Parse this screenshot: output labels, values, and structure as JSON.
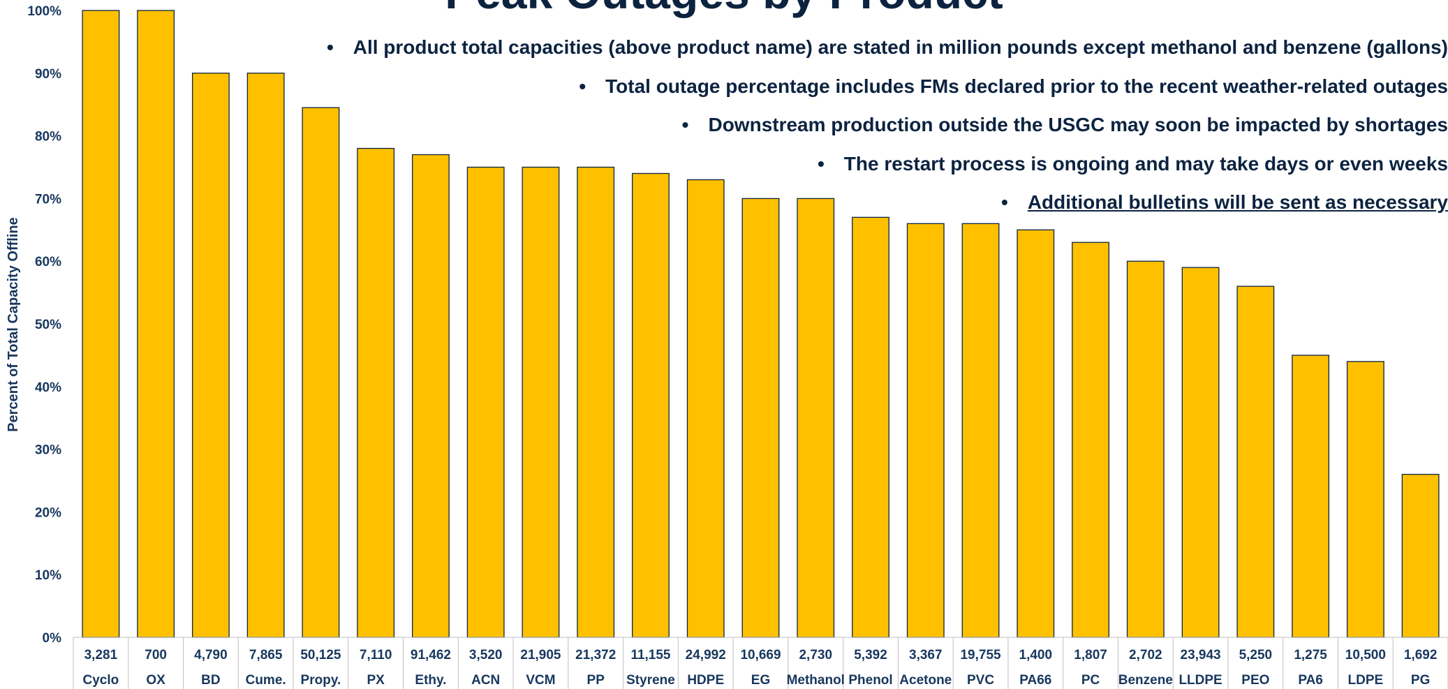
{
  "chart_data": {
    "type": "bar",
    "title": "Peak Outages by Product",
    "ylabel": "Percent of Total Capacity Offline",
    "xlabel": "",
    "ylim": [
      0,
      100
    ],
    "yticks": [
      "0%",
      "10%",
      "20%",
      "30%",
      "40%",
      "50%",
      "60%",
      "70%",
      "80%",
      "90%",
      "100%"
    ],
    "categories": [
      "Cyclo",
      "OX",
      "BD",
      "Cume.",
      "Propy.",
      "PX",
      "Ethy.",
      "ACN",
      "VCM",
      "PP",
      "Styrene",
      "HDPE",
      "EG",
      "Methanol",
      "Phenol",
      "Acetone",
      "PVC",
      "PA66",
      "PC",
      "Benzene",
      "LLDPE",
      "PEO",
      "PA6",
      "LDPE",
      "PG"
    ],
    "capacities": [
      "3,281",
      "700",
      "4,790",
      "7,865",
      "50,125",
      "7,110",
      "91,462",
      "3,520",
      "21,905",
      "21,372",
      "11,155",
      "24,992",
      "10,669",
      "2,730",
      "5,392",
      "3,367",
      "19,755",
      "1,400",
      "1,807",
      "2,702",
      "23,943",
      "5,250",
      "1,275",
      "10,500",
      "1,692"
    ],
    "values": [
      100,
      100,
      90,
      90,
      84.5,
      78,
      77,
      75,
      75,
      75,
      74,
      73,
      70,
      70,
      67,
      66,
      66,
      65,
      63,
      60,
      59,
      56,
      45,
      44,
      26
    ],
    "bar_color": "#ffc000",
    "bar_edge_color": "#0c2340",
    "text_color": "#17375e",
    "grid": false,
    "annotations": [
      "All product total capacities (above product name) are stated in million pounds except methanol and benzene (gallons)",
      "Total outage percentage includes FMs declared prior to the recent weather-related outages",
      "Downstream production outside the USGC may soon be impacted by shortages",
      "The restart process is ongoing and may take days or even weeks",
      "Additional bulletins will be sent as necessary"
    ],
    "bullet_symbol": "•"
  }
}
